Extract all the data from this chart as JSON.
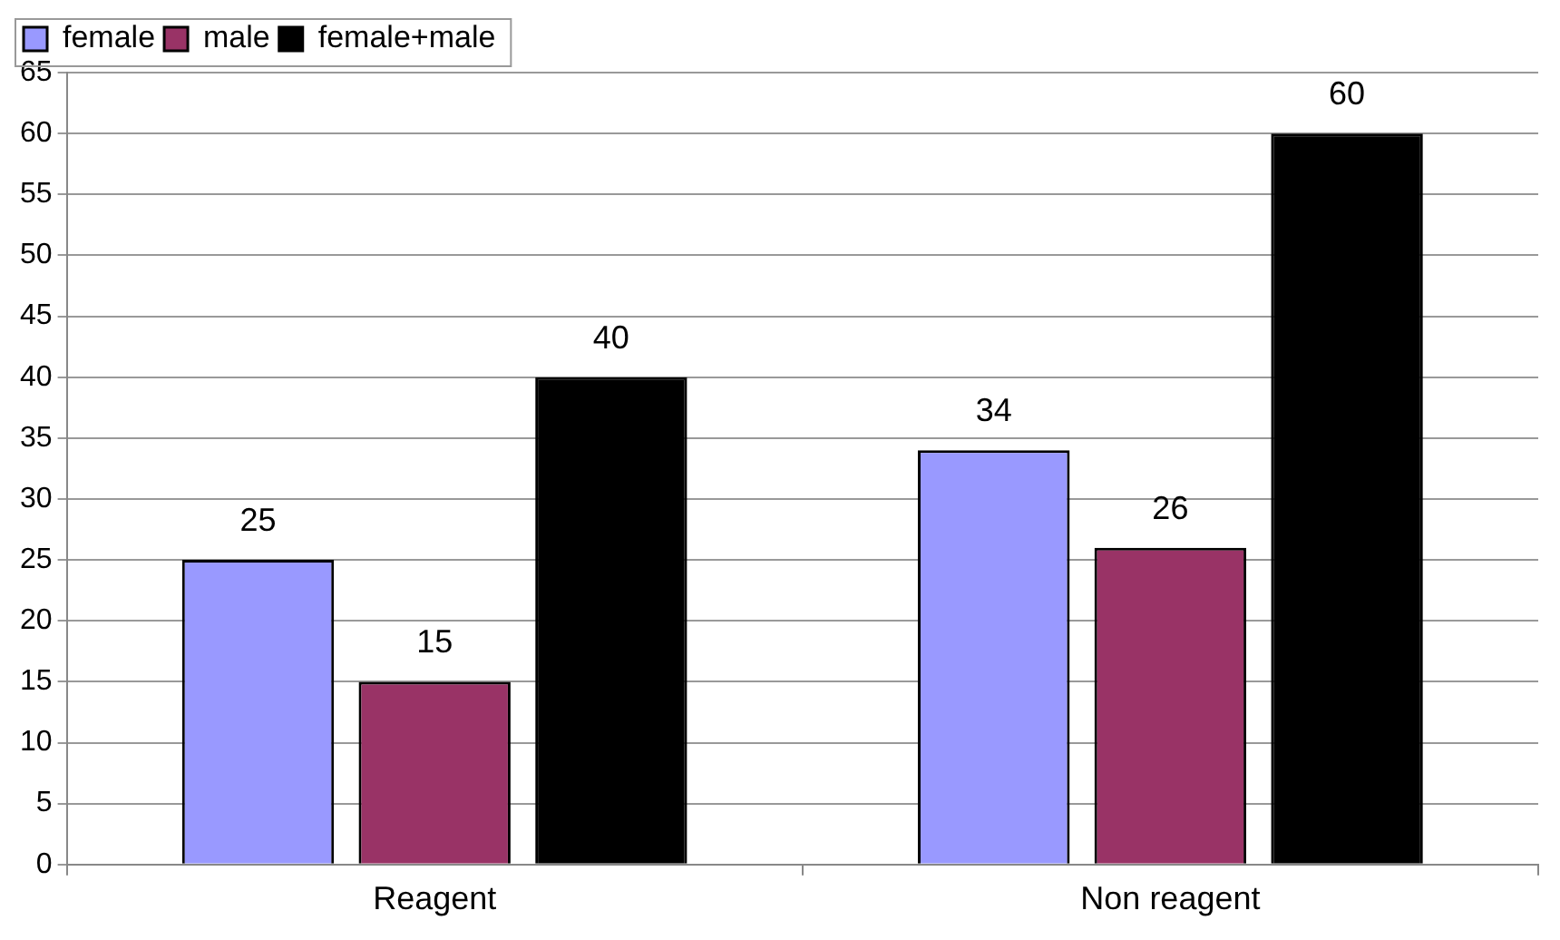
{
  "chart_data": {
    "type": "bar",
    "categories": [
      "Reagent",
      "Non reagent"
    ],
    "series": [
      {
        "name": "female",
        "color": "#9999ff",
        "values": [
          25,
          34
        ]
      },
      {
        "name": "male",
        "color": "#993366",
        "values": [
          15,
          26
        ]
      },
      {
        "name": "female+male",
        "color": "#000000",
        "values": [
          40,
          60
        ]
      }
    ],
    "ylim": [
      0,
      65
    ],
    "yticks": [
      0,
      5,
      10,
      15,
      20,
      25,
      30,
      35,
      40,
      45,
      50,
      55,
      60,
      65
    ],
    "grid": "y",
    "legend": "top left",
    "data_labels": true
  }
}
